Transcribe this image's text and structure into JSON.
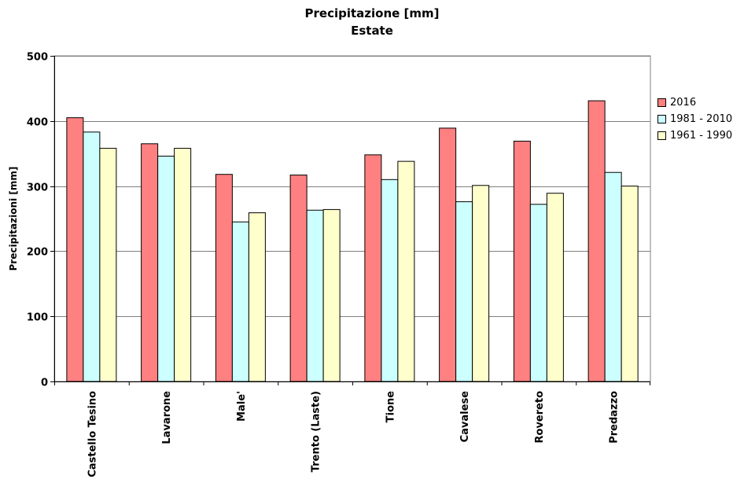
{
  "chart_data": {
    "type": "bar",
    "title": "Precipitazione [mm]",
    "subtitle": "Estate",
    "ylabel": "Precipitazioni [mm]",
    "xlabel": "",
    "ylim": [
      0,
      500
    ],
    "yticks": [
      "0",
      "100",
      "200",
      "300",
      "400",
      "500"
    ],
    "grid": true,
    "legend_position": "right",
    "categories": [
      "Castello Tesino",
      "Lavarone",
      "Male'",
      "Trento (Laste)",
      "Tione",
      "Cavalese",
      "Rovereto",
      "Predazzo"
    ],
    "series": [
      {
        "name": "2016",
        "color": "#ff8080",
        "values": [
          405,
          365,
          318,
          317,
          348,
          389,
          369,
          431
        ]
      },
      {
        "name": "1981 - 2010",
        "color": "#ccffff",
        "values": [
          383,
          346,
          245,
          263,
          310,
          276,
          272,
          321
        ]
      },
      {
        "name": "1961 - 1990",
        "color": "#ffffcc",
        "values": [
          358,
          358,
          259,
          264,
          338,
          301,
          289,
          300
        ]
      }
    ]
  }
}
